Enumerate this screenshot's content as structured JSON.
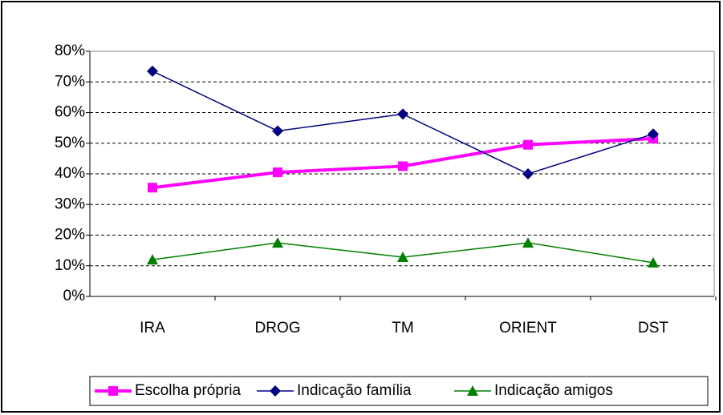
{
  "chart_data": {
    "type": "line",
    "categories": [
      "IRA",
      "DROG",
      "TM",
      "ORIENT",
      "DST"
    ],
    "series": [
      {
        "name": "Escolha própria",
        "color": "#ff00ff",
        "marker": "square",
        "values": [
          35.5,
          40.5,
          42.5,
          49.5,
          51.5
        ]
      },
      {
        "name": "Indicação família",
        "color": "#000080",
        "marker": "diamond",
        "values": [
          73.5,
          54,
          59.5,
          40,
          53
        ]
      },
      {
        "name": "Indicação amigos",
        "color": "#008000",
        "marker": "triangle",
        "values": [
          12,
          17.5,
          12.8,
          17.5,
          11
        ]
      }
    ],
    "ylim": [
      0,
      80
    ],
    "yticks": [
      {
        "value": 0,
        "label": "0%"
      },
      {
        "value": 10,
        "label": "10%"
      },
      {
        "value": 20,
        "label": "20%"
      },
      {
        "value": 30,
        "label": "30%"
      },
      {
        "value": 40,
        "label": "40%"
      },
      {
        "value": 50,
        "label": "50%"
      },
      {
        "value": 60,
        "label": "60%"
      },
      {
        "value": 70,
        "label": "70%"
      },
      {
        "value": 80,
        "label": "80%"
      }
    ],
    "grid": true,
    "legend": "bottom"
  }
}
